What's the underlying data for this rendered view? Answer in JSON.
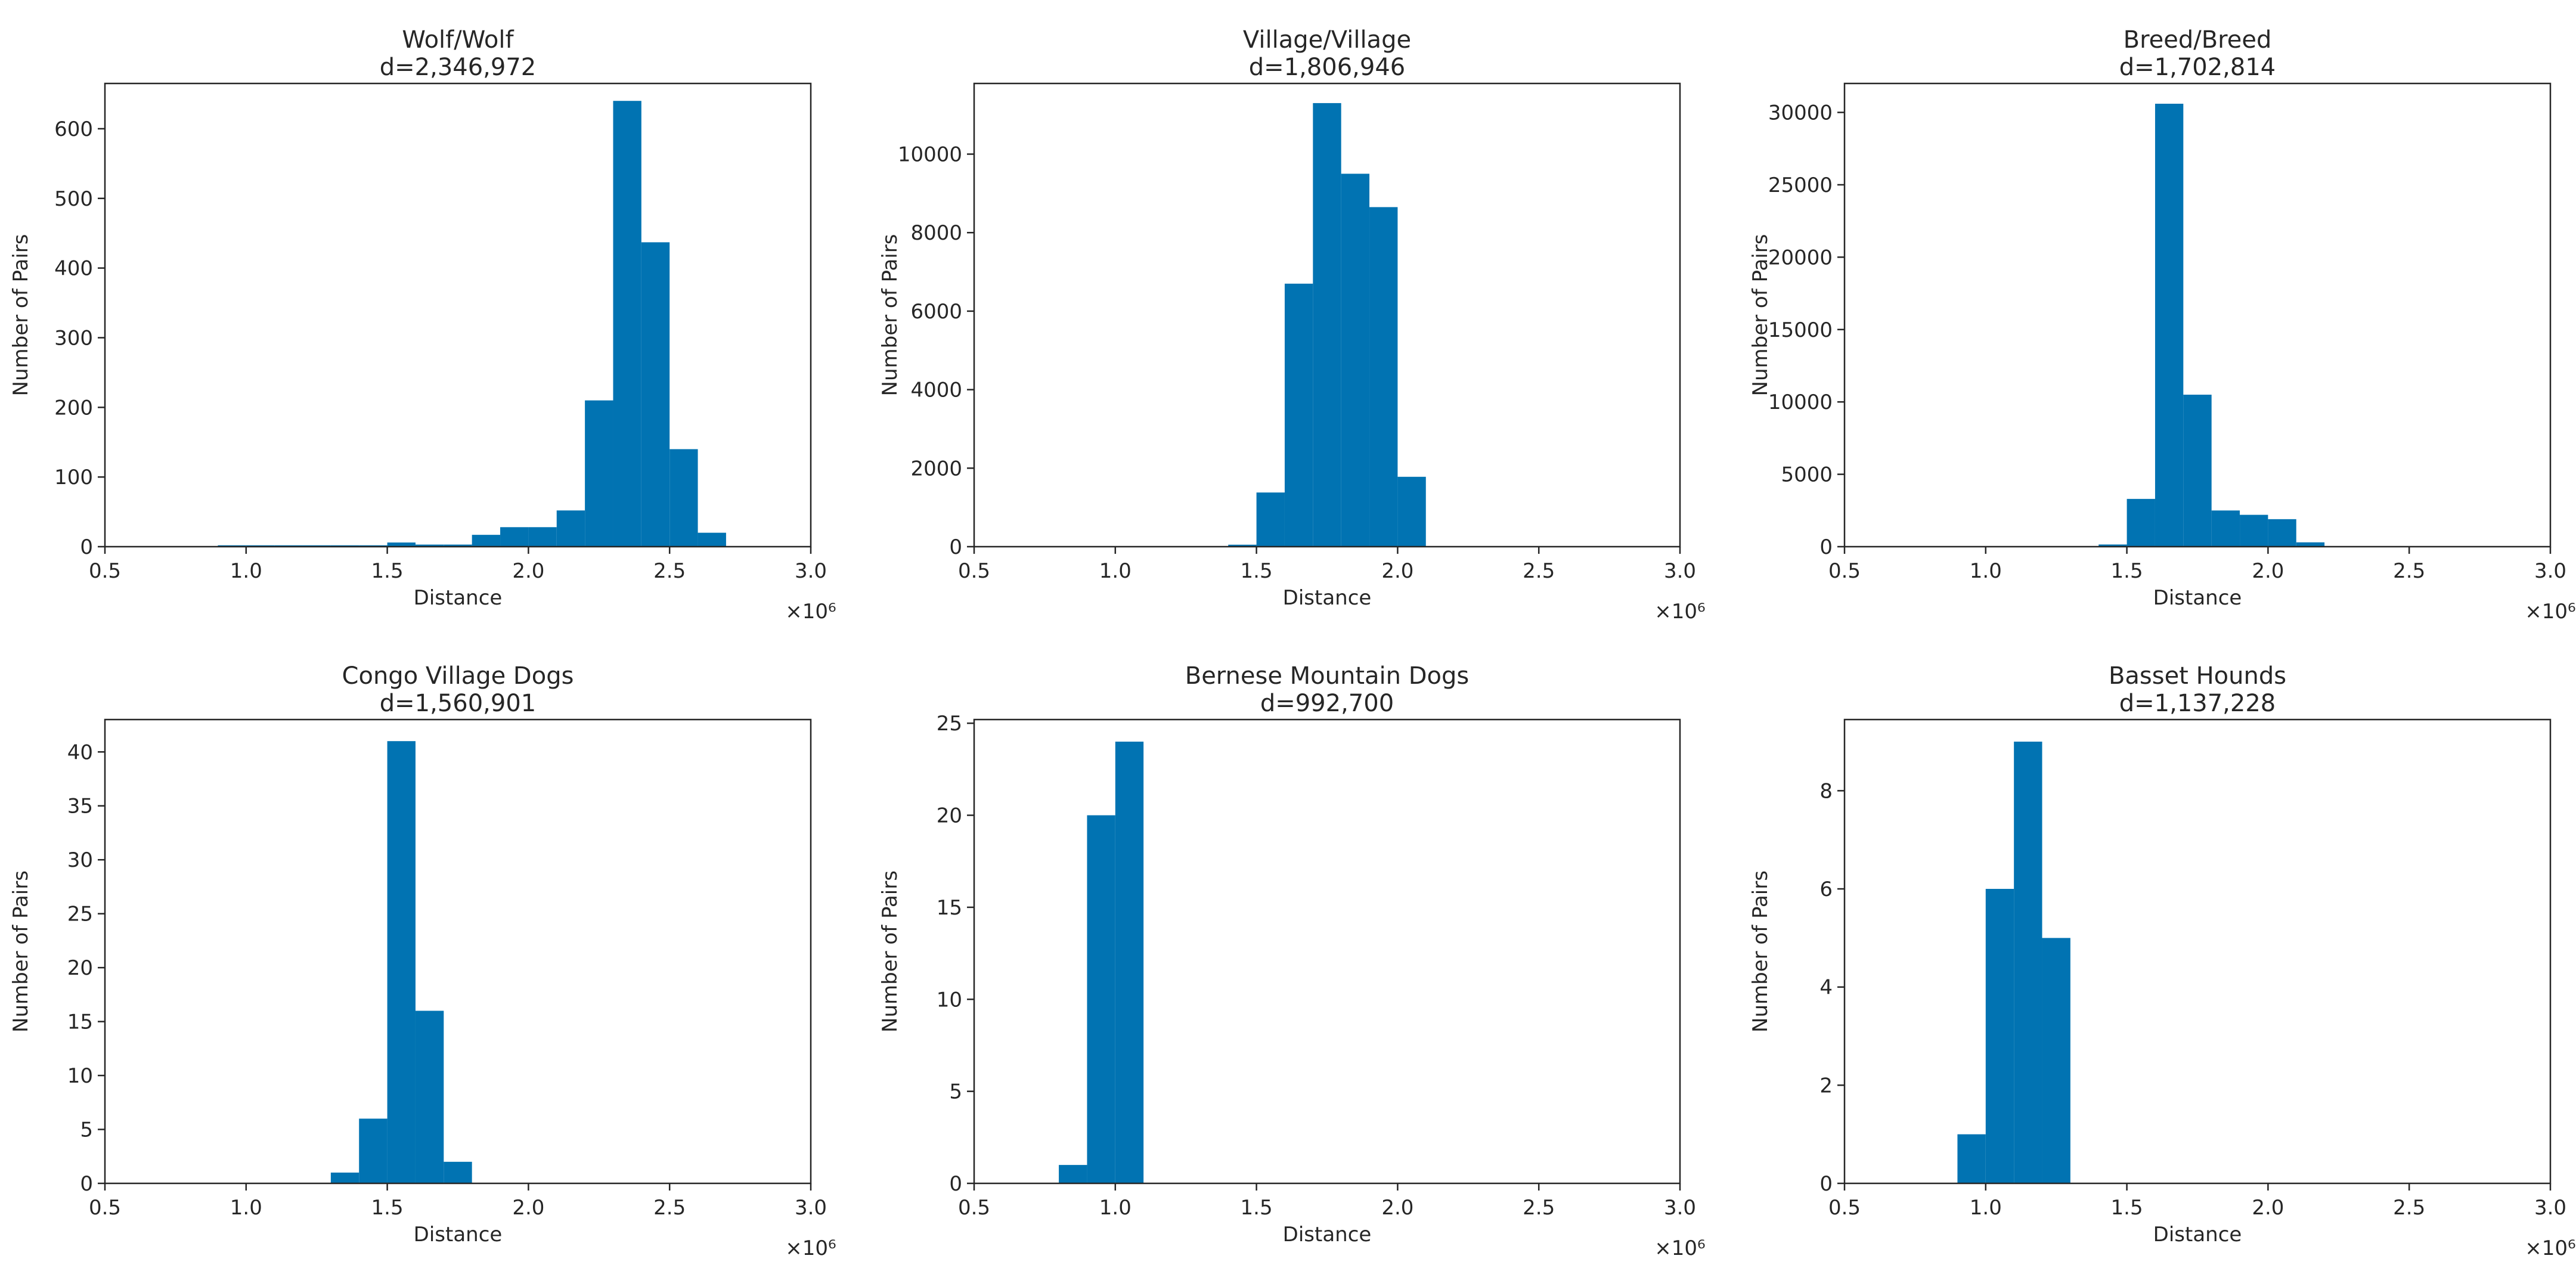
{
  "figure": {
    "bar_color": "#0173b2",
    "text_color": "#262626",
    "axis_color": "#262626"
  },
  "chart_data": [
    {
      "type": "bar",
      "title": "Wolf/Wolf",
      "subtitle": "d=2,346,972",
      "xlabel": "Distance",
      "ylabel": "Number of Pairs",
      "x_offset_label": "×10⁶",
      "xlim": [
        0.5,
        3.0
      ],
      "ylim": [
        0,
        665
      ],
      "xticks": [
        0.5,
        1.0,
        1.5,
        2.0,
        2.5,
        3.0
      ],
      "xtick_labels": [
        "0.5",
        "1.0",
        "1.5",
        "2.0",
        "2.5",
        "3.0"
      ],
      "yticks": [
        0,
        100,
        200,
        300,
        400,
        500,
        600
      ],
      "ytick_labels": [
        "0",
        "100",
        "200",
        "300",
        "400",
        "500",
        "600"
      ],
      "bins": [
        {
          "x0": 0.9,
          "x1": 1.0,
          "value": 2
        },
        {
          "x0": 1.0,
          "x1": 1.1,
          "value": 2
        },
        {
          "x0": 1.1,
          "x1": 1.2,
          "value": 2
        },
        {
          "x0": 1.2,
          "x1": 1.3,
          "value": 2
        },
        {
          "x0": 1.3,
          "x1": 1.4,
          "value": 2
        },
        {
          "x0": 1.4,
          "x1": 1.5,
          "value": 2
        },
        {
          "x0": 1.5,
          "x1": 1.6,
          "value": 6
        },
        {
          "x0": 1.6,
          "x1": 1.7,
          "value": 3
        },
        {
          "x0": 1.7,
          "x1": 1.8,
          "value": 3
        },
        {
          "x0": 1.8,
          "x1": 1.9,
          "value": 17
        },
        {
          "x0": 1.9,
          "x1": 2.0,
          "value": 28
        },
        {
          "x0": 2.0,
          "x1": 2.1,
          "value": 28
        },
        {
          "x0": 2.1,
          "x1": 2.2,
          "value": 52
        },
        {
          "x0": 2.2,
          "x1": 2.3,
          "value": 210
        },
        {
          "x0": 2.3,
          "x1": 2.4,
          "value": 640
        },
        {
          "x0": 2.4,
          "x1": 2.5,
          "value": 437
        },
        {
          "x0": 2.5,
          "x1": 2.6,
          "value": 140
        },
        {
          "x0": 2.6,
          "x1": 2.7,
          "value": 20
        }
      ]
    },
    {
      "type": "bar",
      "title": "Village/Village",
      "subtitle": "d=1,806,946",
      "xlabel": "Distance",
      "ylabel": "Number of Pairs",
      "x_offset_label": "×10⁶",
      "xlim": [
        0.5,
        3.0
      ],
      "ylim": [
        0,
        11800
      ],
      "xticks": [
        0.5,
        1.0,
        1.5,
        2.0,
        2.5,
        3.0
      ],
      "xtick_labels": [
        "0.5",
        "1.0",
        "1.5",
        "2.0",
        "2.5",
        "3.0"
      ],
      "yticks": [
        0,
        2000,
        4000,
        6000,
        8000,
        10000
      ],
      "ytick_labels": [
        "0",
        "2000",
        "4000",
        "6000",
        "8000",
        "10000"
      ],
      "bins": [
        {
          "x0": 1.4,
          "x1": 1.5,
          "value": 50
        },
        {
          "x0": 1.5,
          "x1": 1.6,
          "value": 1380
        },
        {
          "x0": 1.6,
          "x1": 1.7,
          "value": 6700
        },
        {
          "x0": 1.7,
          "x1": 1.8,
          "value": 11300
        },
        {
          "x0": 1.8,
          "x1": 1.9,
          "value": 9500
        },
        {
          "x0": 1.9,
          "x1": 2.0,
          "value": 8650
        },
        {
          "x0": 2.0,
          "x1": 2.1,
          "value": 1780
        }
      ]
    },
    {
      "type": "bar",
      "title": "Breed/Breed",
      "subtitle": "d=1,702,814",
      "xlabel": "Distance",
      "ylabel": "Number of Pairs",
      "x_offset_label": "×10⁶",
      "xlim": [
        0.5,
        3.0
      ],
      "ylim": [
        0,
        32000
      ],
      "xticks": [
        0.5,
        1.0,
        1.5,
        2.0,
        2.5,
        3.0
      ],
      "xtick_labels": [
        "0.5",
        "1.0",
        "1.5",
        "2.0",
        "2.5",
        "3.0"
      ],
      "yticks": [
        0,
        5000,
        10000,
        15000,
        20000,
        25000,
        30000
      ],
      "ytick_labels": [
        "0",
        "5000",
        "10000",
        "15000",
        "20000",
        "25000",
        "30000"
      ],
      "bins": [
        {
          "x0": 1.4,
          "x1": 1.5,
          "value": 150
        },
        {
          "x0": 1.5,
          "x1": 1.6,
          "value": 3300
        },
        {
          "x0": 1.6,
          "x1": 1.7,
          "value": 30600
        },
        {
          "x0": 1.7,
          "x1": 1.8,
          "value": 10500
        },
        {
          "x0": 1.8,
          "x1": 1.9,
          "value": 2500
        },
        {
          "x0": 1.9,
          "x1": 2.0,
          "value": 2200
        },
        {
          "x0": 2.0,
          "x1": 2.1,
          "value": 1900
        },
        {
          "x0": 2.1,
          "x1": 2.2,
          "value": 300
        }
      ]
    },
    {
      "type": "bar",
      "title": "Congo Village Dogs",
      "subtitle": "d=1,560,901",
      "xlabel": "Distance",
      "ylabel": "Number of Pairs",
      "x_offset_label": "×10⁶",
      "xlim": [
        0.5,
        3.0
      ],
      "ylim": [
        0,
        43
      ],
      "xticks": [
        0.5,
        1.0,
        1.5,
        2.0,
        2.5,
        3.0
      ],
      "xtick_labels": [
        "0.5",
        "1.0",
        "1.5",
        "2.0",
        "2.5",
        "3.0"
      ],
      "yticks": [
        0,
        5,
        10,
        15,
        20,
        25,
        30,
        35,
        40
      ],
      "ytick_labels": [
        "0",
        "5",
        "10",
        "15",
        "20",
        "25",
        "30",
        "35",
        "40"
      ],
      "bins": [
        {
          "x0": 1.3,
          "x1": 1.4,
          "value": 1
        },
        {
          "x0": 1.4,
          "x1": 1.5,
          "value": 6
        },
        {
          "x0": 1.5,
          "x1": 1.6,
          "value": 41
        },
        {
          "x0": 1.6,
          "x1": 1.7,
          "value": 16
        },
        {
          "x0": 1.7,
          "x1": 1.8,
          "value": 2
        }
      ]
    },
    {
      "type": "bar",
      "title": "Bernese Mountain Dogs",
      "subtitle": "d=992,700",
      "xlabel": "Distance",
      "ylabel": "Number of Pairs",
      "x_offset_label": "×10⁶",
      "xlim": [
        0.5,
        3.0
      ],
      "ylim": [
        0,
        25.2
      ],
      "xticks": [
        0.5,
        1.0,
        1.5,
        2.0,
        2.5,
        3.0
      ],
      "xtick_labels": [
        "0.5",
        "1.0",
        "1.5",
        "2.0",
        "2.5",
        "3.0"
      ],
      "yticks": [
        0,
        5,
        10,
        15,
        20,
        25
      ],
      "ytick_labels": [
        "0",
        "5",
        "10",
        "15",
        "20",
        "25"
      ],
      "bins": [
        {
          "x0": 0.8,
          "x1": 0.9,
          "value": 1
        },
        {
          "x0": 0.9,
          "x1": 1.0,
          "value": 20
        },
        {
          "x0": 1.0,
          "x1": 1.1,
          "value": 24
        }
      ]
    },
    {
      "type": "bar",
      "title": "Basset Hounds",
      "subtitle": "d=1,137,228",
      "xlabel": "Distance",
      "ylabel": "Number of Pairs",
      "x_offset_label": "×10⁶",
      "xlim": [
        0.5,
        3.0
      ],
      "ylim": [
        0,
        9.45
      ],
      "xticks": [
        0.5,
        1.0,
        1.5,
        2.0,
        2.5,
        3.0
      ],
      "xtick_labels": [
        "0.5",
        "1.0",
        "1.5",
        "2.0",
        "2.5",
        "3.0"
      ],
      "yticks": [
        0,
        2,
        4,
        6,
        8
      ],
      "ytick_labels": [
        "0",
        "2",
        "4",
        "6",
        "8"
      ],
      "bins": [
        {
          "x0": 0.9,
          "x1": 1.0,
          "value": 1
        },
        {
          "x0": 1.0,
          "x1": 1.1,
          "value": 6
        },
        {
          "x0": 1.1,
          "x1": 1.2,
          "value": 9
        },
        {
          "x0": 1.2,
          "x1": 1.3,
          "value": 5
        }
      ]
    }
  ]
}
